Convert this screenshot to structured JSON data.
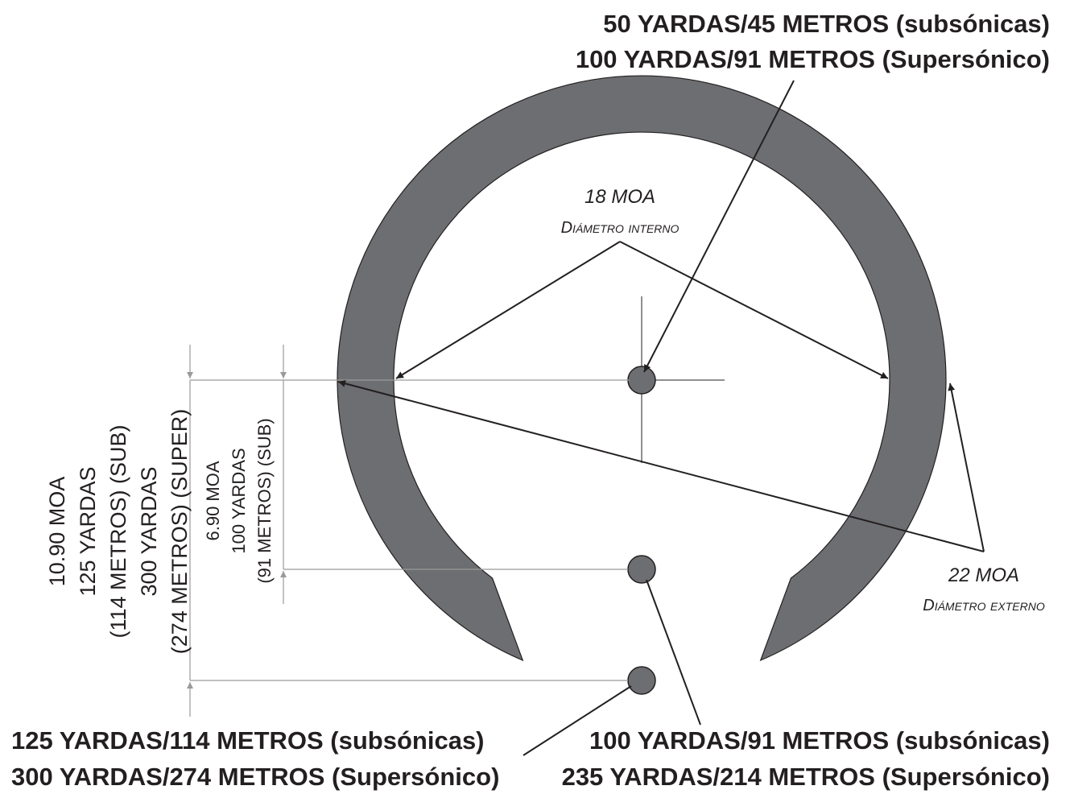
{
  "colors": {
    "ring": "#6d6e71",
    "dot": "#6d6e71",
    "ink": "#231f20",
    "extension": "#9a9a9a"
  },
  "labels": {
    "top_line1": "50 YARDAS/45 METROS (subsónicas)",
    "top_line2": "100 YARDAS/91 METROS (Supersónico)",
    "inner_value": "18 MOA",
    "inner_caption": "Diámetro interno",
    "outer_value": "22 MOA",
    "outer_caption": "Diámetro externo",
    "bottom_left_line1": "125 YARDAS/114 METROS (subsónicas)",
    "bottom_left_line2": "300 YARDAS/274 METROS (Supersónico)",
    "bottom_right_line1": "100 YARDAS/91 METROS (subsónicas)",
    "bottom_right_line2": "235 YARDAS/214 METROS (Supersónico)",
    "dim_outer": [
      "10.90 MOA",
      "125 YARDAS",
      "(114 METROS) (SUB)",
      "300 YARDAS",
      "(274 METROS) (SUPER)"
    ],
    "dim_inner": [
      "6.90 MOA",
      "100 YARDAS",
      "(91 METROS) (SUB)"
    ]
  }
}
